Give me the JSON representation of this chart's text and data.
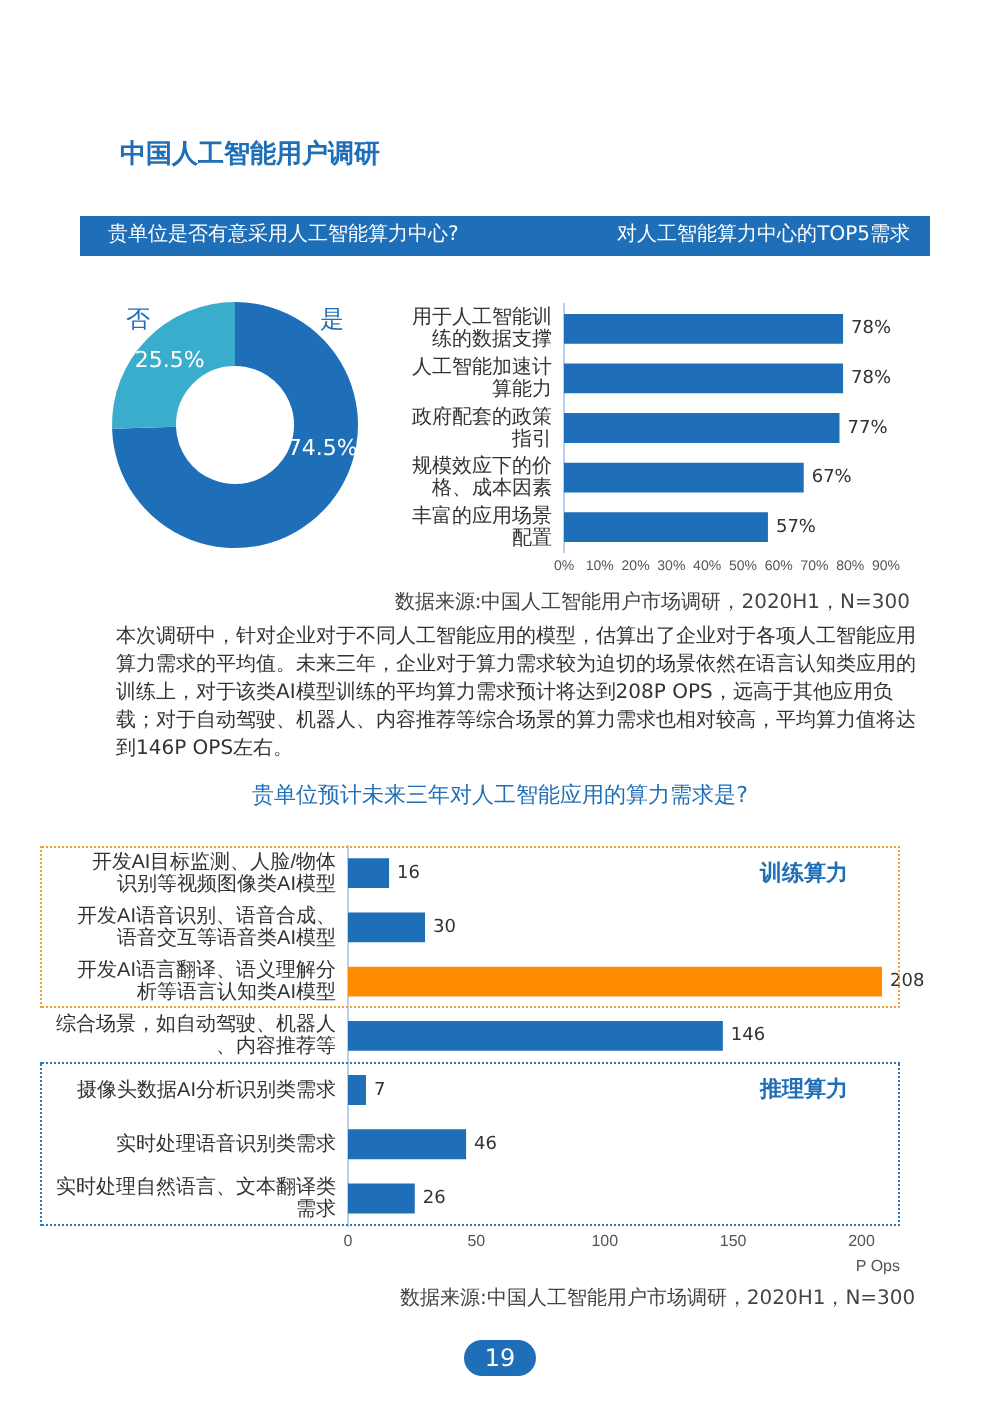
{
  "chart_data": [
    {
      "type": "donut",
      "title": "贵单位是否有意采用人工智能算力中心?",
      "categories": [
        "是",
        "否"
      ],
      "values": [
        74.5,
        25.5
      ],
      "colors": [
        "#1f6fb8",
        "#3aaccc"
      ],
      "value_labels": [
        "74.5%",
        "25.5%"
      ],
      "annotations": [
        "中国人工智能用户调研"
      ]
    },
    {
      "type": "bar",
      "orientation": "horizontal",
      "title": "对人工智能算力中心的TOP5需求",
      "categories": [
        "用于人工智能训练的数据支撑",
        "人工智能加速计算能力",
        "政府配套的政策指引",
        "规模效应下的价格、成本因素",
        "丰富的应用场景配置"
      ],
      "values": [
        78,
        78,
        77,
        67,
        57
      ],
      "color": "#1f6fb8",
      "value_labels": [
        "78%",
        "78%",
        "77%",
        "67%",
        "57%"
      ],
      "xlim": [
        0,
        90
      ],
      "xticks": [
        {
          "value": 0,
          "label": "0%"
        },
        {
          "value": 10,
          "label": "10%"
        },
        {
          "value": 20,
          "label": "20%"
        },
        {
          "value": 30,
          "label": "30%"
        },
        {
          "value": 40,
          "label": "40%"
        },
        {
          "value": 50,
          "label": "50%"
        },
        {
          "value": 60,
          "label": "60%"
        },
        {
          "value": 70,
          "label": "70%"
        },
        {
          "value": 80,
          "label": "80%"
        },
        {
          "value": 90,
          "label": "90%"
        }
      ],
      "grid": false,
      "annotations": [
        "数据来源:中国人工智能用户市场调研，2020H1，N=300"
      ]
    },
    {
      "type": "bar",
      "orientation": "horizontal",
      "title": "贵单位预计未来三年对人工智能应用的算力需求是?",
      "categories": [
        "开发AI目标监测、人脸/物体识别等视频图像类AI模型",
        "开发AI语音识别、语音合成、语音交互等语音类AI模型",
        "开发AI语言翻译、语义理解分析等语言认知类AI模型",
        "综合场景，如自动驾驶、机器人、内容推荐等",
        "摄像头数据AI分析识别类需求",
        "实时处理语音识别类需求",
        "实时处理自然语言、文本翻译类需求"
      ],
      "values": [
        16,
        30,
        208,
        146,
        7,
        46,
        26
      ],
      "colors": [
        "#1f6fb8",
        "#1f6fb8",
        "#ff8c00",
        "#1f6fb8",
        "#1f6fb8",
        "#1f6fb8",
        "#1f6fb8"
      ],
      "data_labels": true,
      "xlim": [
        0,
        215
      ],
      "xticks": [
        0,
        50,
        100,
        150,
        200
      ],
      "xlabel": "P Ops",
      "grid": false,
      "annotations": [
        "本次调研中，针对企业对于不同人工智能应用的模型，估算出了企业对于各项人工智能应用算力需求的平均值。未来三年，企业对于算力需求较为迫切的场景依然在语言认知类应用的训练上，对于该类AI模型训练的平均算力需求预计将达到208P OPS，远高于其他应用负载；对于自动驾驶、机器人、内容推荐等综合场景的算力需求也相对较高，平均算力值将达到146P OPS左右。",
        "训练算力",
        "推理算力",
        "数据来源:中国人工智能用户市场调研，2020H1，N=300",
        "19"
      ]
    }
  ]
}
